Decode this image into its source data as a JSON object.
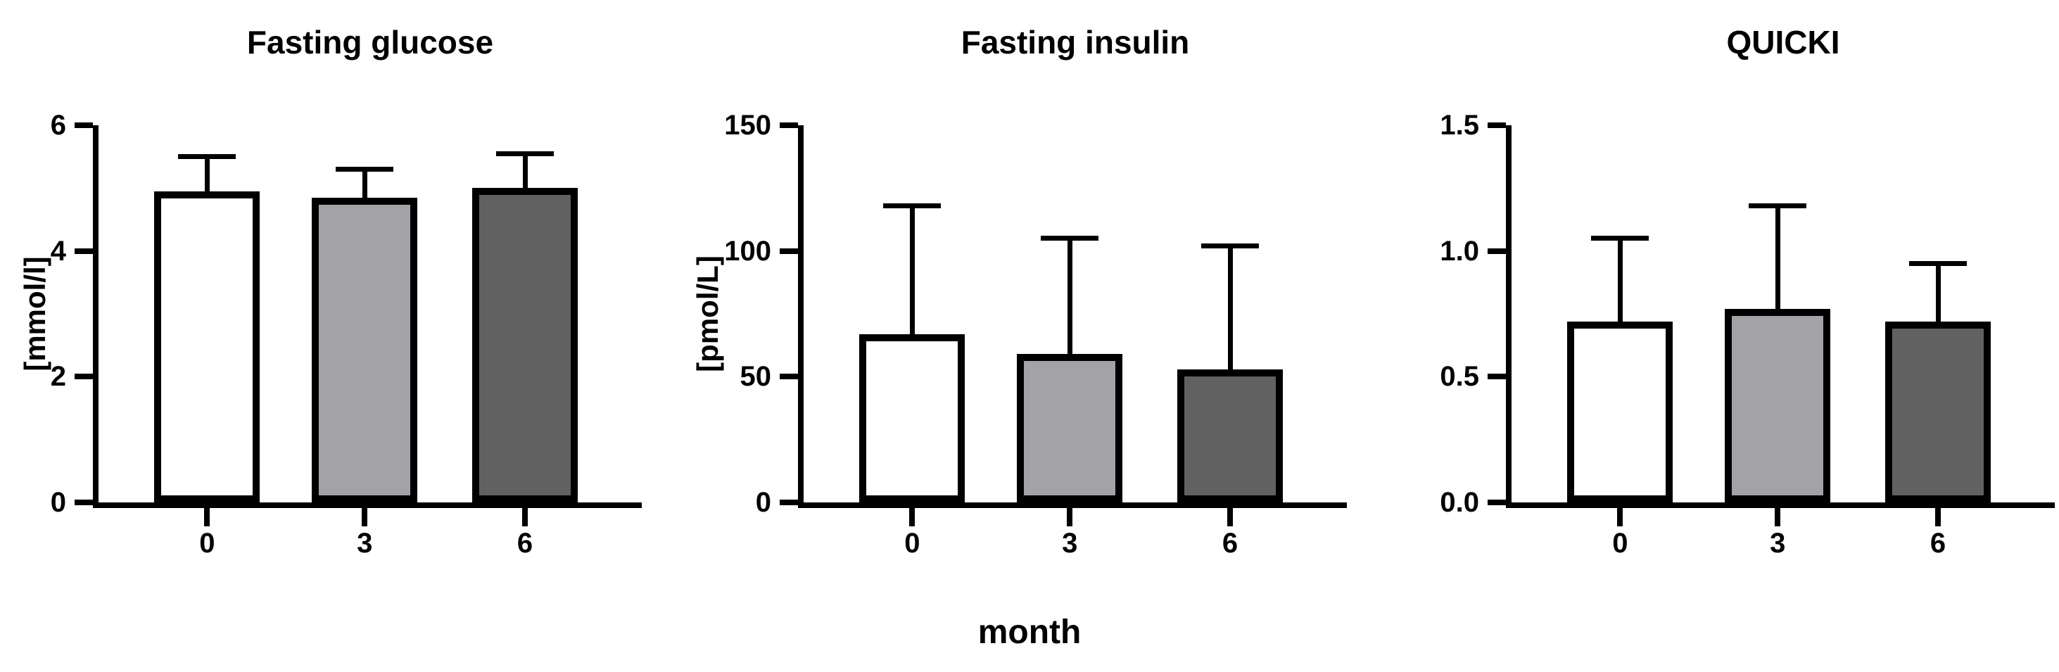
{
  "figure": {
    "xlabel": "month",
    "background": "#ffffff",
    "text_color": "#000000",
    "axis_color": "#000000"
  },
  "chart_data": [
    {
      "type": "bar",
      "title": "Fasting glucose",
      "ylabel": "[mmol/l]",
      "categories": [
        "0",
        "3",
        "6"
      ],
      "values": [
        4.95,
        4.85,
        5.0
      ],
      "error_top": [
        5.5,
        5.3,
        5.55
      ],
      "error_direction": "up",
      "ylim": [
        0,
        6
      ],
      "yticks": [
        "0",
        "2",
        "4",
        "6"
      ],
      "grid": false,
      "legend": "none",
      "bar_fill_colors": [
        "#ffffff",
        "#a3a3a7",
        "#616161"
      ],
      "bar_border_color": "#000000"
    },
    {
      "type": "bar",
      "title": "Fasting insulin",
      "ylabel": "[pmol/L]",
      "categories": [
        "0",
        "3",
        "6"
      ],
      "values": [
        67,
        59,
        53
      ],
      "error_top": [
        118,
        105,
        102
      ],
      "error_direction": "up",
      "ylim": [
        0,
        150
      ],
      "yticks": [
        "0",
        "50",
        "100",
        "150"
      ],
      "grid": false,
      "legend": "none",
      "bar_fill_colors": [
        "#ffffff",
        "#a3a3a7",
        "#616161"
      ],
      "bar_border_color": "#000000"
    },
    {
      "type": "bar",
      "title": "QUICKI",
      "ylabel": "",
      "categories": [
        "0",
        "3",
        "6"
      ],
      "values": [
        0.72,
        0.77,
        0.72
      ],
      "error_top": [
        1.05,
        1.18,
        0.95
      ],
      "error_direction": "up",
      "ylim": [
        0,
        1.5
      ],
      "yticks": [
        "0.0",
        "0.5",
        "1.0",
        "1.5"
      ],
      "grid": false,
      "legend": "none",
      "bar_fill_colors": [
        "#ffffff",
        "#a3a3a7",
        "#616161"
      ],
      "bar_border_color": "#000000"
    }
  ]
}
